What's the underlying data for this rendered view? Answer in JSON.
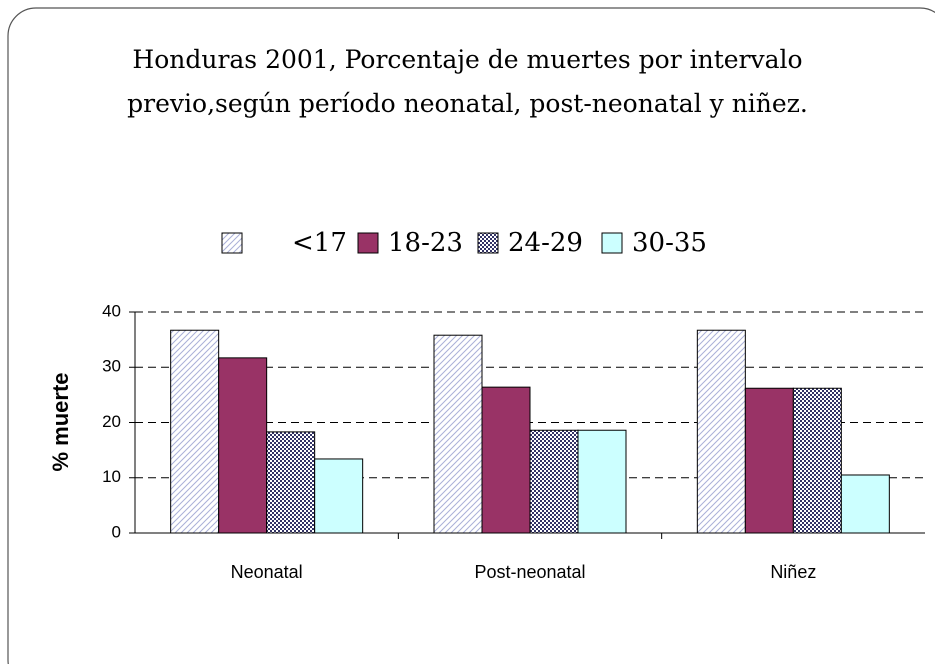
{
  "chart_data": {
    "type": "bar",
    "title": "Honduras 2001, Porcentaje de muertes por intervalo previo,según período neonatal, post-neonatal y niñez.",
    "y_label": "% muerte",
    "categories": [
      "Neonatal",
      "Post-neonatal",
      "Niñez"
    ],
    "series": [
      {
        "name": "<17",
        "color": "#aab0d8",
        "pattern": "diagonal",
        "values": [
          36.7,
          35.8,
          36.7
        ]
      },
      {
        "name": "18-23",
        "color": "#993366",
        "values": [
          31.7,
          26.4,
          26.2
        ]
      },
      {
        "name": "24-29",
        "color": "#333366",
        "pattern": "checker",
        "values": [
          18.3,
          18.6,
          26.2
        ]
      },
      {
        "name": "30-35",
        "color": "#ccffff",
        "values": [
          13.4,
          18.6,
          10.5
        ]
      }
    ],
    "ylim": [
      0,
      40
    ],
    "yticks": [
      0,
      10,
      20,
      30,
      40
    ],
    "grid": true,
    "legend": "top"
  }
}
